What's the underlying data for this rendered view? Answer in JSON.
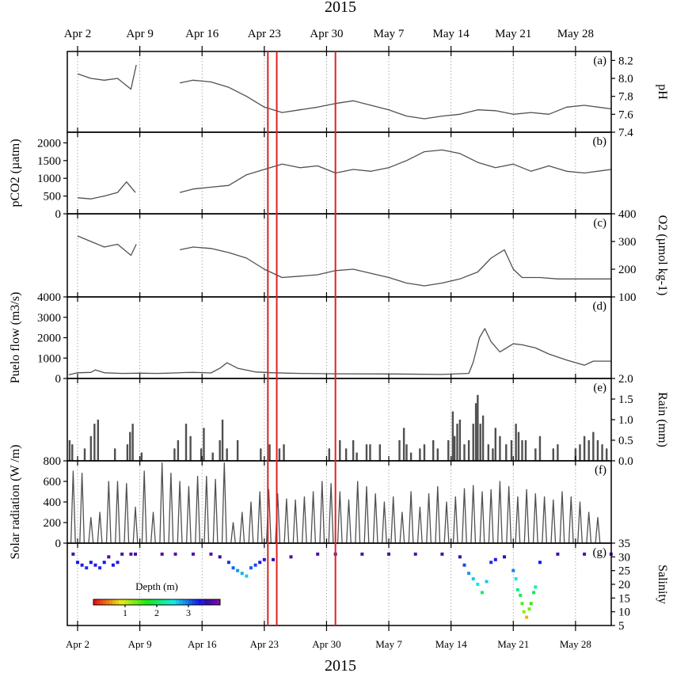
{
  "figure": {
    "year_label": "2015",
    "colors": {
      "series": "#505050",
      "event_lines": "#e02020",
      "grid": "#999999",
      "frame": "#000000"
    },
    "date_ticks": [
      "Apr 2",
      "Apr 9",
      "Apr 16",
      "Apr 23",
      "Apr 30",
      "May 7",
      "May 14",
      "May 21",
      "May 28"
    ],
    "event_lines_day": [
      22.4,
      23.4,
      30.0
    ]
  },
  "chart_data": [
    {
      "panel": "(a)",
      "type": "line",
      "ylabel": "pH",
      "axis_side": "right",
      "ylim": [
        7.4,
        8.3
      ],
      "yticks": [
        "7.4",
        "7.6",
        "7.8",
        "8.0",
        "8.2"
      ],
      "x": [
        1.0,
        2.5,
        4.0,
        5.5,
        7.0,
        7.6,
        12.5,
        14.0,
        16.0,
        18.0,
        20.0,
        22.0,
        24.0,
        26.0,
        28.0,
        30.0,
        32.0,
        34.0,
        36.0,
        38.0,
        40.0,
        42.0,
        44.0,
        46.0,
        48.0,
        50.0,
        52.0,
        54.0,
        56.0,
        58.0,
        61.0
      ],
      "y": [
        8.05,
        8.0,
        7.98,
        8.0,
        7.88,
        8.15,
        7.95,
        7.98,
        7.96,
        7.9,
        7.8,
        7.68,
        7.62,
        7.65,
        7.68,
        7.72,
        7.75,
        7.7,
        7.65,
        7.58,
        7.55,
        7.58,
        7.6,
        7.65,
        7.64,
        7.6,
        7.62,
        7.6,
        7.68,
        7.7,
        7.66
      ],
      "gaps_after_x": [
        7.6
      ]
    },
    {
      "panel": "(b)",
      "type": "line",
      "ylabel": "pCO2 (µatm)",
      "axis_side": "left",
      "ylim": [
        0,
        2300
      ],
      "yticks": [
        "0",
        "500",
        "1000",
        "1500",
        "2000"
      ],
      "x": [
        1.0,
        2.5,
        4.0,
        5.5,
        6.5,
        7.5,
        12.5,
        14.0,
        16.0,
        18.0,
        20.0,
        22.0,
        24.0,
        26.0,
        28.0,
        30.0,
        32.0,
        34.0,
        36.0,
        38.0,
        40.0,
        42.0,
        44.0,
        46.0,
        48.0,
        50.0,
        52.0,
        54.0,
        56.0,
        58.0,
        61.0
      ],
      "y": [
        450,
        420,
        500,
        600,
        900,
        600,
        600,
        700,
        750,
        800,
        1100,
        1250,
        1400,
        1300,
        1350,
        1150,
        1250,
        1200,
        1300,
        1500,
        1750,
        1800,
        1700,
        1450,
        1300,
        1400,
        1200,
        1350,
        1200,
        1150,
        1250
      ],
      "gaps_after_x": [
        7.5
      ]
    },
    {
      "panel": "(c)",
      "type": "line",
      "ylabel": "O2 (µmol kg-1)",
      "axis_side": "right",
      "ylim": [
        100,
        400
      ],
      "yticks": [
        "100",
        "200",
        "300",
        "400"
      ],
      "x": [
        1.0,
        2.5,
        4.0,
        5.5,
        7.0,
        7.6,
        12.5,
        14.0,
        16.0,
        18.0,
        20.0,
        22.0,
        24.0,
        26.0,
        28.0,
        30.0,
        32.0,
        34.0,
        36.0,
        38.0,
        40.0,
        42.0,
        44.0,
        46.0,
        47.5,
        49.0,
        50.0,
        51.0,
        53.0,
        55.0,
        61.0
      ],
      "y": [
        320,
        300,
        280,
        290,
        250,
        290,
        270,
        280,
        275,
        260,
        240,
        200,
        170,
        175,
        180,
        195,
        200,
        185,
        170,
        150,
        140,
        150,
        165,
        190,
        240,
        270,
        200,
        170,
        170,
        165,
        165
      ],
      "gaps_after_x": [
        7.6
      ]
    },
    {
      "panel": "(d)",
      "type": "line",
      "ylabel": "Puelo flow (m3/s)",
      "axis_side": "left",
      "ylim": [
        0,
        4000
      ],
      "yticks": [
        "0",
        "1000",
        "2000",
        "3000",
        "4000"
      ],
      "x": [
        0.0,
        1.0,
        2.5,
        3.0,
        4.0,
        6.0,
        8.0,
        10.0,
        12.0,
        13.0,
        14.0,
        16.0,
        17.0,
        17.8,
        19.0,
        21.0,
        23.0,
        26.0,
        30.0,
        36.0,
        42.0,
        45.0,
        45.5,
        46.2,
        46.8,
        47.5,
        48.5,
        50.0,
        51.0,
        52.5,
        54.0,
        56.0,
        58.0,
        59.0,
        61.0
      ],
      "y": [
        180,
        280,
        300,
        420,
        280,
        250,
        260,
        250,
        270,
        290,
        300,
        270,
        500,
        770,
        500,
        320,
        280,
        250,
        230,
        220,
        200,
        250,
        800,
        2000,
        2450,
        1800,
        1300,
        1700,
        1650,
        1500,
        1200,
        900,
        650,
        850,
        850
      ]
    },
    {
      "panel": "(e)",
      "type": "bar",
      "ylabel": "Rain (mm)",
      "axis_side": "right",
      "ylim": [
        0,
        2.0
      ],
      "yticks": [
        "0.0",
        "0.5",
        "1.0",
        "1.5",
        "2.0"
      ],
      "x": [
        0.1,
        0.4,
        1.8,
        2.5,
        2.9,
        3.3,
        5.2,
        6.6,
        6.9,
        7.2,
        8.2,
        11.9,
        12.3,
        13.2,
        13.7,
        14.9,
        15.2,
        16.2,
        17.0,
        17.3,
        17.8,
        19.0,
        21.6,
        22.6,
        23.7,
        24.2,
        29.3,
        30.5,
        31.2,
        32.0,
        32.4,
        33.5,
        33.9,
        35.0,
        37.2,
        37.7,
        38.0,
        38.5,
        39.5,
        40.0,
        41.0,
        41.5,
        42.7,
        43.2,
        43.4,
        43.7,
        44.0,
        44.5,
        45.0,
        45.5,
        45.8,
        46.0,
        46.3,
        46.6,
        47.2,
        47.7,
        48.0,
        48.5,
        49.2,
        49.8,
        50.3,
        50.6,
        51.0,
        51.4,
        52.5,
        53.0,
        54.5,
        55.0,
        57.0,
        57.5,
        58.0,
        58.5,
        59.0,
        59.5,
        60.0,
        60.5
      ],
      "y": [
        0.5,
        0.4,
        0.3,
        0.6,
        0.9,
        1.0,
        0.3,
        0.4,
        0.7,
        0.9,
        0.2,
        0.3,
        0.5,
        0.9,
        0.6,
        0.3,
        0.8,
        0.2,
        0.5,
        1.0,
        0.3,
        0.5,
        0.3,
        0.4,
        0.3,
        0.4,
        0.3,
        0.5,
        0.3,
        0.5,
        0.2,
        0.4,
        0.4,
        0.4,
        0.5,
        0.8,
        0.4,
        0.2,
        0.3,
        0.4,
        0.5,
        0.3,
        0.5,
        1.2,
        0.6,
        0.9,
        1.0,
        0.4,
        0.5,
        0.9,
        1.4,
        1.6,
        0.9,
        1.1,
        0.4,
        0.3,
        0.8,
        0.6,
        0.4,
        0.5,
        0.9,
        0.7,
        0.5,
        0.5,
        0.3,
        0.6,
        0.3,
        0.4,
        0.3,
        0.4,
        0.6,
        0.5,
        0.7,
        0.5,
        0.4,
        0.3
      ]
    },
    {
      "panel": "(f)",
      "type": "line",
      "ylabel": "Solar radiation (W /m)",
      "axis_side": "left",
      "ylim": [
        0,
        800
      ],
      "yticks": [
        "0",
        "200",
        "400",
        "600",
        "800"
      ],
      "daily_peaks": [
        700,
        680,
        250,
        300,
        600,
        600,
        580,
        350,
        700,
        300,
        780,
        680,
        600,
        550,
        650,
        650,
        620,
        780,
        200,
        300,
        400,
        500,
        520,
        480,
        430,
        420,
        450,
        500,
        600,
        580,
        500,
        420,
        600,
        550,
        480,
        400,
        450,
        300,
        500,
        350,
        480,
        550,
        400,
        450,
        530,
        560,
        500,
        520,
        600,
        550,
        450,
        520,
        480,
        450,
        420,
        500,
        450,
        400,
        300,
        250
      ]
    },
    {
      "panel": "(g)",
      "type": "scatter",
      "ylabel": "Salinity",
      "axis_side": "right",
      "ylim": [
        5,
        35
      ],
      "yticks": [
        "5",
        "10",
        "15",
        "20",
        "25",
        "30",
        "35"
      ],
      "x": [
        0.5,
        1.0,
        1.5,
        2.0,
        2.5,
        3.0,
        3.5,
        4.0,
        4.5,
        5.0,
        5.5,
        6.0,
        7.0,
        7.5,
        10.5,
        12.0,
        14.0,
        16.0,
        17.0,
        18.0,
        18.5,
        19.0,
        19.5,
        20.0,
        20.5,
        21.0,
        21.5,
        22.0,
        23.0,
        25.0,
        28.0,
        30.0,
        33.0,
        36.0,
        39.0,
        42.0,
        44.0,
        44.5,
        45.0,
        45.5,
        46.0,
        46.5,
        47.0,
        47.5,
        48.0,
        49.0,
        50.0,
        50.3,
        50.5,
        50.8,
        51.0,
        51.2,
        51.5,
        51.8,
        52.0,
        52.3,
        52.5,
        53.0,
        55.0,
        58.0,
        61.0
      ],
      "y": [
        31,
        28,
        27,
        26,
        28,
        27,
        26,
        28,
        30,
        27,
        28,
        31,
        31,
        31,
        31,
        31,
        31,
        31,
        30,
        28,
        26,
        25,
        24,
        23,
        26,
        27,
        28,
        29,
        29,
        30,
        31,
        31,
        31,
        31,
        31,
        31,
        30,
        27,
        24,
        22,
        20,
        17,
        21,
        28,
        29,
        30,
        25,
        22,
        18,
        16,
        13,
        10,
        8,
        11,
        13,
        17,
        19,
        28,
        31,
        31,
        31
      ],
      "depth": [
        3.6,
        3.3,
        3.4,
        3.2,
        3.3,
        3.4,
        3.2,
        3.3,
        3.6,
        3.3,
        3.4,
        3.7,
        3.7,
        3.6,
        3.7,
        3.7,
        3.7,
        3.7,
        3.5,
        3.2,
        3.0,
        2.8,
        2.7,
        2.6,
        3.0,
        3.1,
        3.3,
        3.4,
        3.5,
        3.6,
        3.7,
        3.7,
        3.7,
        3.7,
        3.7,
        3.7,
        3.5,
        3.1,
        2.8,
        2.6,
        2.5,
        2.0,
        2.6,
        3.2,
        3.4,
        3.5,
        2.9,
        2.5,
        2.1,
        1.9,
        1.4,
        1.2,
        0.6,
        1.3,
        1.5,
        1.9,
        2.3,
        3.3,
        3.6,
        3.7,
        3.7
      ],
      "colorbar": {
        "label": "Depth (m)",
        "ticks": [
          "1",
          "2",
          "3"
        ],
        "range": [
          0,
          4
        ]
      }
    }
  ]
}
